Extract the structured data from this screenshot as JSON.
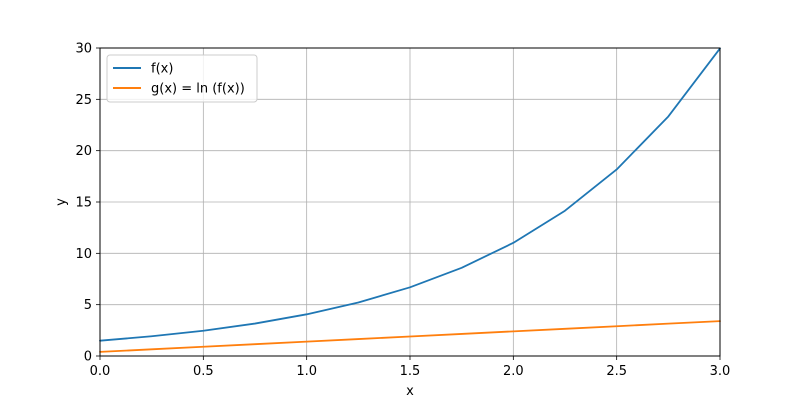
{
  "chart_data": {
    "type": "line",
    "title": "",
    "xlabel": "x",
    "ylabel": "y",
    "xlim": [
      0.0,
      3.0
    ],
    "ylim": [
      0,
      30
    ],
    "xticks": [
      "0.0",
      "0.5",
      "1.0",
      "1.5",
      "2.0",
      "2.5",
      "3.0"
    ],
    "yticks": [
      "0",
      "5",
      "10",
      "15",
      "20",
      "25",
      "30"
    ],
    "grid": true,
    "legend_position": "upper-left",
    "series": [
      {
        "name": "f(x)",
        "color": "#1f77b4",
        "x": [
          0.0,
          0.25,
          0.5,
          0.75,
          1.0,
          1.25,
          1.5,
          1.75,
          2.0,
          2.25,
          2.5,
          2.75,
          3.0
        ],
        "y": [
          1.49,
          1.92,
          2.46,
          3.16,
          4.06,
          5.21,
          6.69,
          8.59,
          11.02,
          14.15,
          18.17,
          23.33,
          29.96
        ]
      },
      {
        "name": "g(x) = ln (f(x))",
        "color": "#ff7f0e",
        "x": [
          0.0,
          0.25,
          0.5,
          0.75,
          1.0,
          1.25,
          1.5,
          1.75,
          2.0,
          2.25,
          2.5,
          2.75,
          3.0
        ],
        "y": [
          0.4,
          0.65,
          0.9,
          1.15,
          1.4,
          1.65,
          1.9,
          2.15,
          2.4,
          2.65,
          2.9,
          3.15,
          3.4
        ]
      }
    ]
  }
}
